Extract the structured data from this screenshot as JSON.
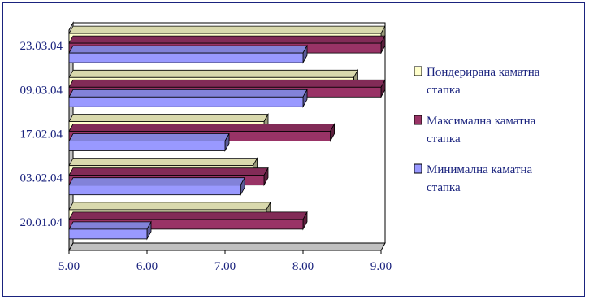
{
  "chart_data": {
    "type": "bar",
    "orientation": "horizontal",
    "style": "3d-clustered",
    "categories": [
      "20.01.04",
      "03.02.04",
      "17.02.04",
      "09.03.04",
      "23.03.04"
    ],
    "series": [
      {
        "name": "Минимална каматна стапка",
        "color": "#9999ff",
        "values": [
          6.0,
          7.2,
          7.0,
          8.0,
          8.0
        ]
      },
      {
        "name": "Максимална каматна стапка",
        "color": "#993366",
        "values": [
          8.0,
          7.5,
          8.35,
          9.0,
          9.0
        ]
      },
      {
        "name": "Пондерирана каматна стапка",
        "color": "#ffffcc",
        "values": [
          7.53,
          7.36,
          7.5,
          8.65,
          9.0
        ]
      }
    ],
    "xlim": [
      5.0,
      9.0
    ],
    "xticks": [
      "5.00",
      "6.00",
      "7.00",
      "8.00",
      "9.00"
    ],
    "legend_position": "right",
    "grid": false
  },
  "legend_lines": [
    [
      "Пондерирана каматна",
      "стапка"
    ],
    [
      "Максимална каматна",
      "стапка"
    ],
    [
      "Минимална каматна",
      "стапка"
    ]
  ]
}
